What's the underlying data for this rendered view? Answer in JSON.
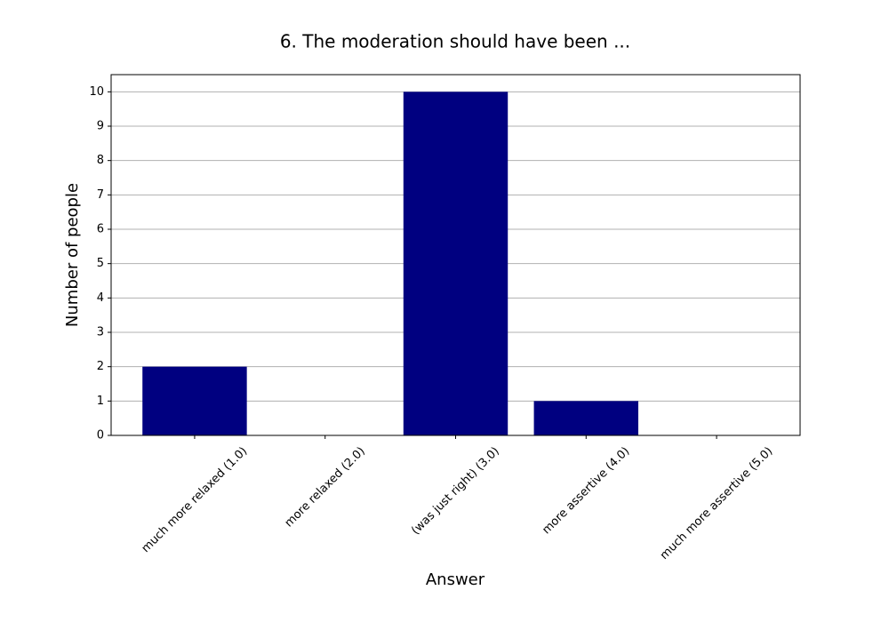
{
  "chart_data": {
    "type": "bar",
    "title": "6. The moderation should have been ...",
    "x_label": "Answer",
    "y_label": "Number of people",
    "categories": [
      "much more relaxed (1.0)",
      "more relaxed (2.0)",
      "(was just right) (3.0)",
      "more assertive (4.0)",
      "much more assertive (5.0)"
    ],
    "values": [
      2,
      0,
      10,
      1,
      0
    ],
    "color": "#000080",
    "ylim": [
      0,
      10.5
    ],
    "yticks": [
      0,
      1,
      2,
      3,
      4,
      5,
      6,
      7,
      8,
      9,
      10
    ],
    "grid": true
  }
}
